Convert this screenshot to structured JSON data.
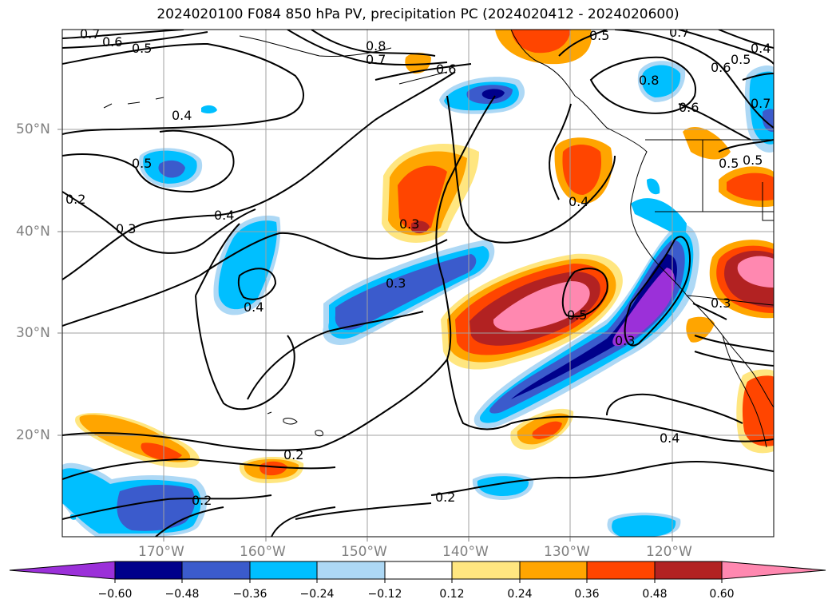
{
  "title": "2024020100 F084 850 hPa PV, precipitation PC (2024020412 - 2024020600)",
  "lat_labels": [
    "50°N",
    "40°N",
    "30°N",
    "20°N"
  ],
  "lon_labels": [
    "170°W",
    "160°W",
    "150°W",
    "140°W",
    "130°W",
    "120°W"
  ],
  "colorbar": {
    "tick_labels": [
      "−0.60",
      "−0.48",
      "−0.36",
      "−0.24",
      "−0.12",
      "0.12",
      "0.24",
      "0.36",
      "0.48",
      "0.60"
    ],
    "colors": [
      "#9b30d9",
      "#00008b",
      "#3b5bcc",
      "#00bfff",
      "#add8f5",
      "#ffffff",
      "#ffe680",
      "#ffa500",
      "#ff4500",
      "#b22222",
      "#ff88b0"
    ]
  },
  "contour_labels": [
    "0.7",
    "0.6",
    "0.5",
    "0.8",
    "0.7",
    "0.6",
    "0.5",
    "0.4",
    "0.5",
    "0.4",
    "0.3",
    "0.2",
    "0.4",
    "0.3",
    "0.4",
    "0.3",
    "0.5",
    "0.3",
    "0.2",
    "0.2",
    "0.2",
    "0.4",
    "0.7",
    "0.5",
    "0.8",
    "0.6",
    "0.6",
    "0.5",
    "0.4",
    "0.7",
    "0.5",
    "0.3"
  ]
}
